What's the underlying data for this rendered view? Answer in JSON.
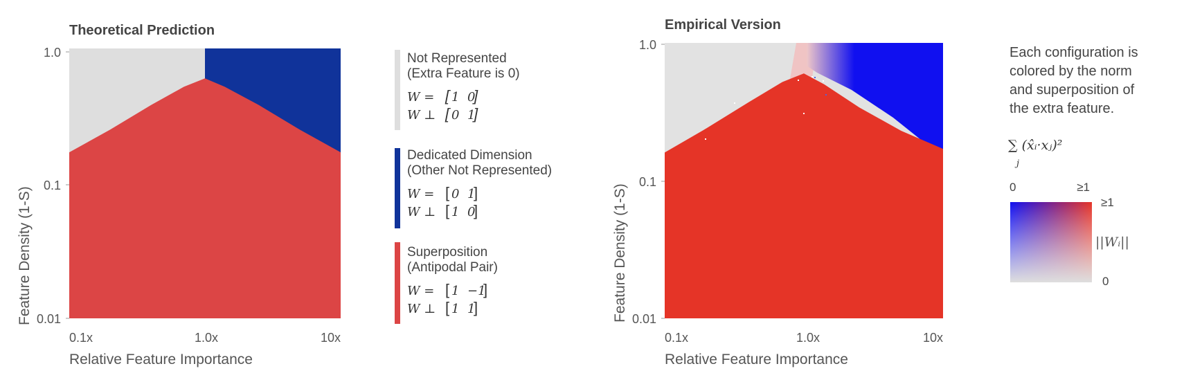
{
  "colors": {
    "gray": "#dedede",
    "blue": "#10339a",
    "red_theory": "#dc4545",
    "red_empirical": "#e53427",
    "blue_empirical": "#1010f0",
    "text": "#444444",
    "tick": "#555555"
  },
  "chart_data": [
    {
      "type": "heatmap",
      "title": "Theoretical Prediction",
      "xlabel": "Relative Feature Importance",
      "ylabel": "Feature Density (1-S)",
      "x_scale": "log",
      "y_scale": "log",
      "xlim": [
        0.1,
        10
      ],
      "ylim": [
        0.01,
        1.0
      ],
      "x_ticks": [
        "0.1x",
        "1.0x",
        "10x"
      ],
      "y_ticks": [
        "1.0",
        "0.1",
        "0.01"
      ],
      "regions": [
        {
          "name": "Not Represented",
          "color": "gray",
          "where": "x < 1.0 and above boundary"
        },
        {
          "name": "Dedicated Dimension",
          "color": "blue",
          "where": "x > 1.0 and above boundary"
        },
        {
          "name": "Superposition",
          "color": "red",
          "where": "below boundary"
        }
      ],
      "boundary": {
        "x": [
          0.1,
          0.2,
          0.4,
          0.7,
          1.0,
          1.4,
          2.5,
          5.0,
          10.0
        ],
        "y": [
          0.17,
          0.25,
          0.38,
          0.52,
          0.6,
          0.52,
          0.38,
          0.25,
          0.17
        ]
      },
      "legend": [
        {
          "label1": "Not Represented",
          "label2": "(Extra Feature is 0)",
          "color": "gray",
          "eq1_lhs": "W = ",
          "eq1_a": "1",
          "eq1_b": "0",
          "eq2_lhs": "W ⊥ ",
          "eq2_a": "0",
          "eq2_b": "1"
        },
        {
          "label1": "Dedicated Dimension",
          "label2": "(Other Not Represented)",
          "color": "blue",
          "eq1_lhs": "W = ",
          "eq1_a": "0",
          "eq1_b": "1",
          "eq2_lhs": "W ⊥ ",
          "eq2_a": "1",
          "eq2_b": "0"
        },
        {
          "label1": "Superposition",
          "label2": "(Antipodal Pair)",
          "color": "red",
          "eq1_lhs": "W = ",
          "eq1_a": "1",
          "eq1_b": "−1",
          "eq2_lhs": "W ⊥ ",
          "eq2_a": "1",
          "eq2_b": "1"
        }
      ]
    },
    {
      "type": "heatmap",
      "title": "Empirical Version",
      "xlabel": "Relative Feature Importance",
      "ylabel": "Feature Density (1-S)",
      "x_scale": "log",
      "y_scale": "log",
      "xlim": [
        0.1,
        10
      ],
      "ylim": [
        0.01,
        1.0
      ],
      "x_ticks": [
        "0.1x",
        "1.0x",
        "10x"
      ],
      "y_ticks": [
        "1.0",
        "0.1",
        "0.01"
      ],
      "boundary": {
        "x": [
          0.1,
          0.2,
          0.4,
          0.7,
          1.0,
          1.4,
          2.5,
          5.0,
          10.0
        ],
        "y": [
          0.16,
          0.24,
          0.37,
          0.52,
          0.6,
          0.5,
          0.34,
          0.23,
          0.17
        ]
      }
    }
  ],
  "right_legend": {
    "description_lines": [
      "Each configuration is",
      "colored by the norm",
      "and superposition of",
      "the extra feature."
    ],
    "formula": "∑ (x̂ᵢ·xⱼ)²",
    "formula_sub": "j",
    "x_min": "0",
    "x_max": "≥1",
    "y_max": "≥1",
    "y_min": "0",
    "y_label": "||Wᵢ||"
  }
}
